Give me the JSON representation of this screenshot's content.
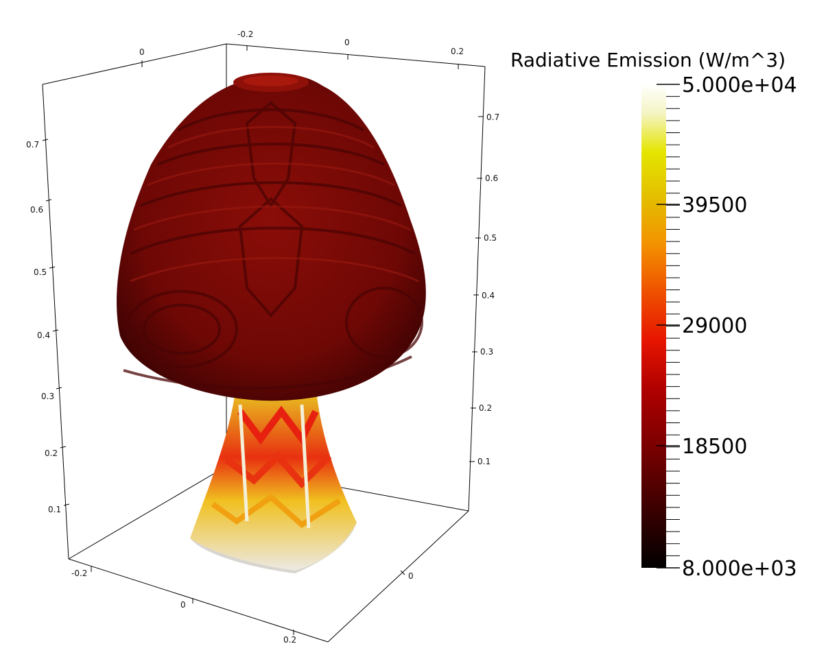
{
  "scene": {
    "object": "mushroom-shaped surface colored by radiative emission",
    "colors": {
      "cap_base": "#7a0a06",
      "cap_dark": "#3d0303",
      "stem_hot": "#e0200a",
      "stem_yellow": "#e8c21a",
      "stem_white": "#ece9e4",
      "axes": "#000000",
      "background": "#ffffff"
    }
  },
  "axes": {
    "top_x_ticks": [
      "-0.2",
      "0",
      "0.2"
    ],
    "top_left_tick": "0",
    "left_z_ticks": [
      "0.7",
      "0.6",
      "0.5",
      "0.4",
      "0.3",
      "0.2",
      "0.1"
    ],
    "right_z_ticks": [
      "0.7",
      "0.6",
      "0.5",
      "0.4",
      "0.3",
      "0.2",
      "0.1"
    ],
    "bottom_y_ticks": [
      "-0.2",
      "0",
      "0.2"
    ],
    "bottom_right_tick": "0"
  },
  "colorbar": {
    "title": "Radiative Emission (W/m^3)",
    "labels": [
      "5.000e+04",
      "39500",
      "29000",
      "18500",
      "8.000e+03"
    ],
    "min": 8000,
    "max": 50000,
    "gradient": [
      "#000000",
      "#3a0000",
      "#7a0000",
      "#b50000",
      "#e81c00",
      "#f05a00",
      "#f39a00",
      "#e8c800",
      "#e6e600",
      "#f5f5c8",
      "#ffffff"
    ]
  }
}
